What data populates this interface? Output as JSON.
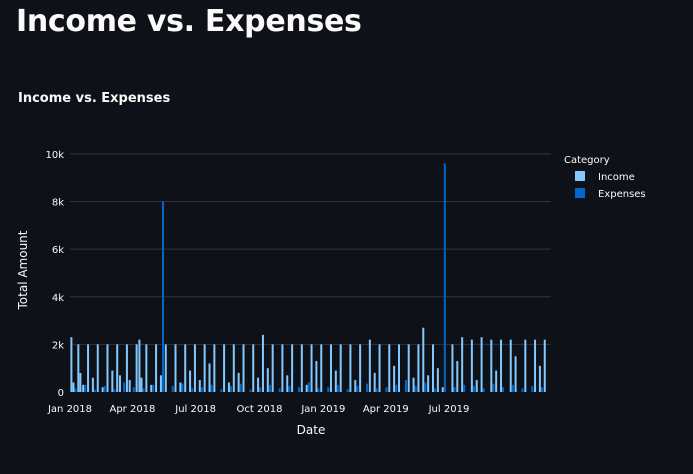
{
  "page": {
    "title": "Income vs. Expenses"
  },
  "colors": {
    "background": "#0e1117",
    "grid": "#31333f",
    "text": "#fafafa",
    "income": "#83c9ff",
    "expenses": "#0068c9"
  },
  "chart_data": {
    "type": "bar",
    "title": "Income vs. Expenses",
    "xlabel": "Date",
    "ylabel": "Total Amount",
    "ylim": [
      0,
      10500
    ],
    "y_ticks": [
      {
        "value": 0,
        "label": "0"
      },
      {
        "value": 2000,
        "label": "2k"
      },
      {
        "value": 4000,
        "label": "4k"
      },
      {
        "value": 6000,
        "label": "6k"
      },
      {
        "value": 8000,
        "label": "8k"
      },
      {
        "value": 10000,
        "label": "10k"
      }
    ],
    "x_range": [
      "2018-01-01",
      "2019-11-25"
    ],
    "x_ticks": [
      {
        "date": "2018-01-01",
        "label": "Jan 2018"
      },
      {
        "date": "2018-04-01",
        "label": "Apr 2018"
      },
      {
        "date": "2018-07-01",
        "label": "Jul 2018"
      },
      {
        "date": "2018-10-01",
        "label": "Oct 2018"
      },
      {
        "date": "2019-01-01",
        "label": "Jan 2019"
      },
      {
        "date": "2019-04-01",
        "label": "Apr 2019"
      },
      {
        "date": "2019-07-01",
        "label": "Jul 2019"
      }
    ],
    "grid": true,
    "legend": {
      "title": "Category",
      "placement": "right"
    },
    "series": [
      {
        "name": "Income",
        "color": "#83c9ff",
        "points": [
          [
            "2018-01-03",
            2300
          ],
          [
            "2018-01-06",
            400
          ],
          [
            "2018-01-13",
            2000
          ],
          [
            "2018-01-16",
            800
          ],
          [
            "2018-01-20",
            300
          ],
          [
            "2018-01-27",
            2000
          ],
          [
            "2018-02-03",
            600
          ],
          [
            "2018-02-10",
            2000
          ],
          [
            "2018-02-17",
            200
          ],
          [
            "2018-02-24",
            2000
          ],
          [
            "2018-03-03",
            900
          ],
          [
            "2018-03-10",
            2000
          ],
          [
            "2018-03-14",
            700
          ],
          [
            "2018-03-24",
            2000
          ],
          [
            "2018-03-28",
            500
          ],
          [
            "2018-04-07",
            2000
          ],
          [
            "2018-04-11",
            2200
          ],
          [
            "2018-04-14",
            600
          ],
          [
            "2018-04-21",
            2000
          ],
          [
            "2018-04-28",
            300
          ],
          [
            "2018-05-05",
            2000
          ],
          [
            "2018-05-12",
            700
          ],
          [
            "2018-05-19",
            2000
          ],
          [
            "2018-06-02",
            2000
          ],
          [
            "2018-06-09",
            400
          ],
          [
            "2018-06-16",
            2000
          ],
          [
            "2018-06-23",
            900
          ],
          [
            "2018-06-30",
            2000
          ],
          [
            "2018-07-07",
            500
          ],
          [
            "2018-07-14",
            2000
          ],
          [
            "2018-07-21",
            1200
          ],
          [
            "2018-07-28",
            2000
          ],
          [
            "2018-08-11",
            2000
          ],
          [
            "2018-08-18",
            400
          ],
          [
            "2018-08-25",
            2000
          ],
          [
            "2018-09-01",
            800
          ],
          [
            "2018-09-08",
            2000
          ],
          [
            "2018-09-22",
            2000
          ],
          [
            "2018-09-29",
            600
          ],
          [
            "2018-10-06",
            2400
          ],
          [
            "2018-10-13",
            1000
          ],
          [
            "2018-10-20",
            2000
          ],
          [
            "2018-11-03",
            2000
          ],
          [
            "2018-11-10",
            700
          ],
          [
            "2018-11-17",
            2000
          ],
          [
            "2018-12-01",
            2000
          ],
          [
            "2018-12-08",
            300
          ],
          [
            "2018-12-15",
            2000
          ],
          [
            "2018-12-22",
            1300
          ],
          [
            "2018-12-29",
            2000
          ],
          [
            "2019-01-12",
            2000
          ],
          [
            "2019-01-19",
            900
          ],
          [
            "2019-01-26",
            2000
          ],
          [
            "2019-02-09",
            2000
          ],
          [
            "2019-02-16",
            500
          ],
          [
            "2019-02-23",
            2000
          ],
          [
            "2019-03-09",
            2200
          ],
          [
            "2019-03-16",
            800
          ],
          [
            "2019-03-23",
            2000
          ],
          [
            "2019-04-06",
            2000
          ],
          [
            "2019-04-13",
            1100
          ],
          [
            "2019-04-20",
            2000
          ],
          [
            "2019-05-04",
            2000
          ],
          [
            "2019-05-11",
            600
          ],
          [
            "2019-05-18",
            2000
          ],
          [
            "2019-05-25",
            2700
          ],
          [
            "2019-06-01",
            700
          ],
          [
            "2019-06-08",
            2000
          ],
          [
            "2019-06-15",
            1000
          ],
          [
            "2019-06-22",
            200
          ],
          [
            "2019-07-06",
            2000
          ],
          [
            "2019-07-13",
            1300
          ],
          [
            "2019-07-20",
            2300
          ],
          [
            "2019-08-03",
            2200
          ],
          [
            "2019-08-10",
            500
          ],
          [
            "2019-08-17",
            2300
          ],
          [
            "2019-08-31",
            2200
          ],
          [
            "2019-09-07",
            900
          ],
          [
            "2019-09-14",
            2200
          ],
          [
            "2019-09-28",
            2200
          ],
          [
            "2019-10-05",
            1500
          ],
          [
            "2019-10-19",
            2200
          ],
          [
            "2019-11-02",
            2200
          ],
          [
            "2019-11-09",
            1100
          ],
          [
            "2019-11-16",
            2200
          ]
        ]
      },
      {
        "name": "Expenses",
        "color": "#0068c9",
        "points": [
          [
            "2018-01-09",
            150
          ],
          [
            "2018-01-23",
            300
          ],
          [
            "2018-02-06",
            100
          ],
          [
            "2018-02-20",
            250
          ],
          [
            "2018-03-06",
            120
          ],
          [
            "2018-03-20",
            400
          ],
          [
            "2018-04-03",
            200
          ],
          [
            "2018-04-17",
            150
          ],
          [
            "2018-05-01",
            300
          ],
          [
            "2018-05-15",
            8000
          ],
          [
            "2018-05-29",
            250
          ],
          [
            "2018-06-12",
            350
          ],
          [
            "2018-06-26",
            150
          ],
          [
            "2018-07-10",
            200
          ],
          [
            "2018-07-24",
            300
          ],
          [
            "2018-08-07",
            120
          ],
          [
            "2018-08-21",
            250
          ],
          [
            "2018-09-04",
            350
          ],
          [
            "2018-09-18",
            100
          ],
          [
            "2018-10-02",
            200
          ],
          [
            "2018-10-16",
            300
          ],
          [
            "2018-10-30",
            150
          ],
          [
            "2018-11-13",
            250
          ],
          [
            "2018-11-27",
            200
          ],
          [
            "2018-12-11",
            400
          ],
          [
            "2018-12-25",
            150
          ],
          [
            "2019-01-08",
            200
          ],
          [
            "2019-01-22",
            300
          ],
          [
            "2019-02-05",
            120
          ],
          [
            "2019-02-19",
            250
          ],
          [
            "2019-03-05",
            350
          ],
          [
            "2019-03-19",
            150
          ],
          [
            "2019-04-02",
            200
          ],
          [
            "2019-04-16",
            300
          ],
          [
            "2019-04-30",
            500
          ],
          [
            "2019-05-14",
            250
          ],
          [
            "2019-05-28",
            400
          ],
          [
            "2019-06-11",
            150
          ],
          [
            "2019-06-25",
            9600
          ],
          [
            "2019-07-09",
            200
          ],
          [
            "2019-07-23",
            300
          ],
          [
            "2019-08-06",
            250
          ],
          [
            "2019-08-20",
            150
          ],
          [
            "2019-09-03",
            350
          ],
          [
            "2019-09-17",
            200
          ],
          [
            "2019-10-01",
            300
          ],
          [
            "2019-10-15",
            150
          ],
          [
            "2019-10-29",
            250
          ],
          [
            "2019-11-12",
            200
          ]
        ]
      }
    ]
  }
}
